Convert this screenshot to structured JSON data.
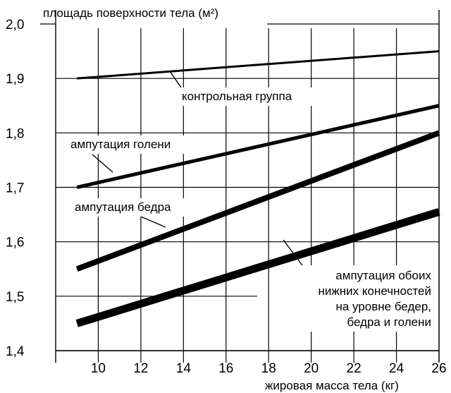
{
  "chart_data": {
    "type": "line",
    "title": "площадь поверхности тела (м²)",
    "xlabel": "жировая масса тела (кг)",
    "ylabel": "площадь поверхности тела (м²)",
    "xlim": [
      8,
      26
    ],
    "ylim": [
      1.4,
      2.0
    ],
    "x_ticks": [
      "10",
      "12",
      "14",
      "16",
      "18",
      "20",
      "22",
      "24",
      "26"
    ],
    "y_ticks": [
      "1,4",
      "1,5",
      "1,6",
      "1,7",
      "1,8",
      "1,9",
      "2,0"
    ],
    "grid": true,
    "series": [
      {
        "name": "контрольная группа",
        "x": [
          9,
          26
        ],
        "y": [
          1.9,
          1.95
        ],
        "color": "#000000"
      },
      {
        "name": "ампутация голени",
        "x": [
          9,
          26
        ],
        "y": [
          1.7,
          1.85
        ],
        "color": "#000000"
      },
      {
        "name": "ампутация бедра",
        "x": [
          9,
          26
        ],
        "y": [
          1.55,
          1.8
        ],
        "color": "#000000"
      },
      {
        "name": "ампутация обоих нижних конечностей на уровне бедер, бедра и голени",
        "x": [
          9,
          26
        ],
        "y": [
          1.45,
          1.655
        ],
        "color": "#000000"
      }
    ],
    "annotations": [
      [
        "контрольная группа"
      ],
      [
        "ампутация голени"
      ],
      [
        "ампутация бедра"
      ],
      [
        "ампутация обоих",
        "нижних конечностей",
        "на уровне бедер,",
        "бедра и голени"
      ]
    ]
  }
}
